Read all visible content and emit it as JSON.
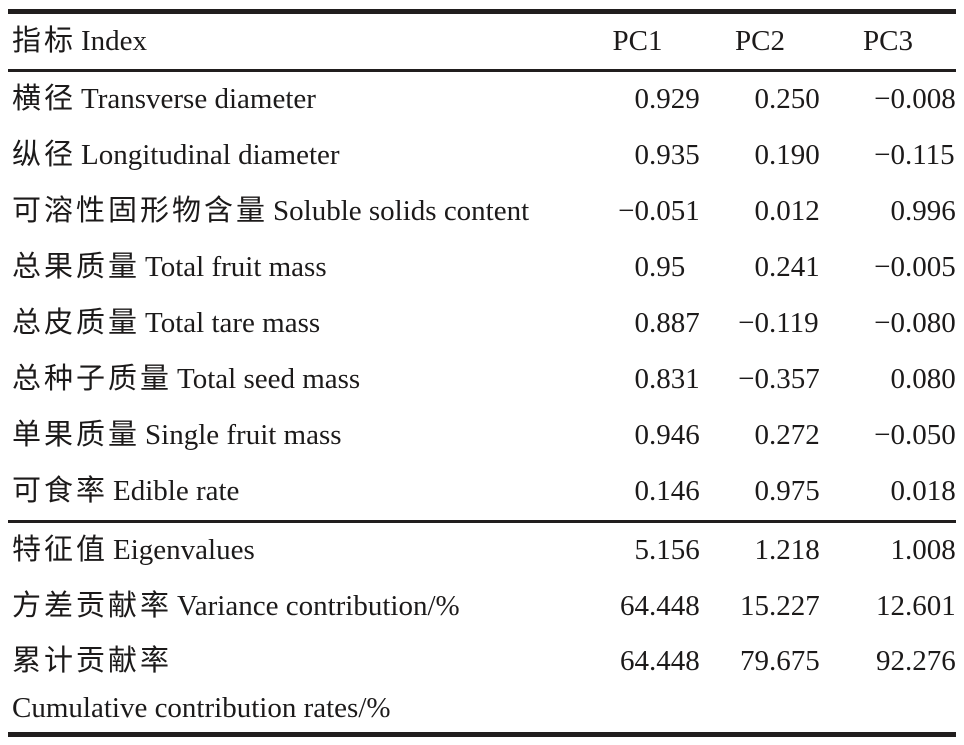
{
  "page": {
    "background": "#ffffff",
    "text_color": "#1c1a1a",
    "rule_color": "#211e1e"
  },
  "table": {
    "header": {
      "index_zh": "指标",
      "index_en": "Index",
      "pc1": "PC1",
      "pc2": "PC2",
      "pc3": "PC3"
    },
    "rows": [
      {
        "zh": "横径",
        "en": "Transverse diameter",
        "pc1": "0.929",
        "pc2": "0.250",
        "pc3": "−0.008"
      },
      {
        "zh": "纵径",
        "en": "Longitudinal diameter",
        "pc1": "0.935",
        "pc2": "0.190",
        "pc3": "−0.115"
      },
      {
        "zh": "可溶性固形物含量",
        "en": "Soluble solids content",
        "pc1": "−0.051",
        "pc2": "0.012",
        "pc3": "0.996"
      },
      {
        "zh": "总果质量",
        "en": "Total fruit mass",
        "pc1": "0.95",
        "pc2": "0.241",
        "pc3": "−0.005"
      },
      {
        "zh": "总皮质量",
        "en": "Total tare mass",
        "pc1": "0.887",
        "pc2": "−0.119",
        "pc3": "−0.080"
      },
      {
        "zh": "总种子质量",
        "en": "Total seed mass",
        "pc1": "0.831",
        "pc2": "−0.357",
        "pc3": "0.080"
      },
      {
        "zh": "单果质量",
        "en": "Single fruit mass",
        "pc1": "0.946",
        "pc2": "0.272",
        "pc3": "−0.050"
      },
      {
        "zh": "可食率",
        "en": "Edible rate",
        "pc1": "0.146",
        "pc2": "0.975",
        "pc3": "0.018"
      }
    ],
    "summary": [
      {
        "zh": "特征值",
        "en": "Eigenvalues",
        "pc1": "5.156",
        "pc2": "1.218",
        "pc3": "1.008"
      },
      {
        "zh": "方差贡献率",
        "en": "Variance contribution/%",
        "pc1": "64.448",
        "pc2": "15.227",
        "pc3": "12.601"
      },
      {
        "zh": "累计贡献率",
        "en": "Cumulative contribution rates/%",
        "pc1": "64.448",
        "pc2": "79.675",
        "pc3": "92.276"
      }
    ]
  }
}
